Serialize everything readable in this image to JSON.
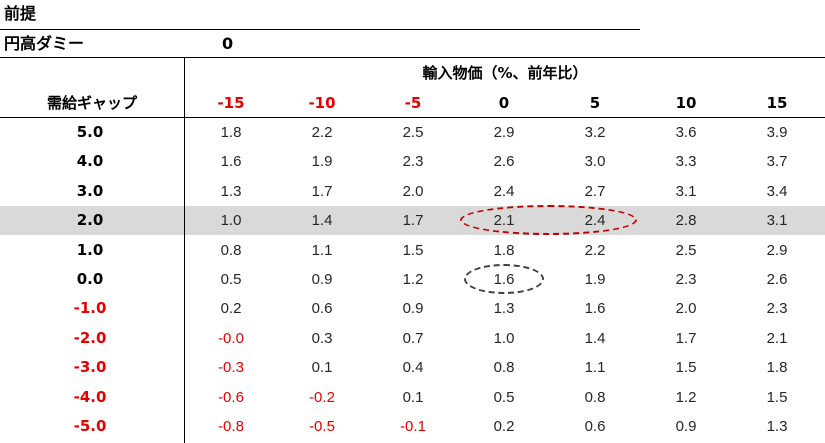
{
  "premise": {
    "title": "前提"
  },
  "yen": {
    "label": "円高ダミー",
    "value": "0"
  },
  "header": {
    "group_title": "輸入物価（%、前年比）",
    "row_header": "需給ギャップ",
    "columns": [
      {
        "label": "-15",
        "negative": true
      },
      {
        "label": "-10",
        "negative": true
      },
      {
        "label": "-5",
        "negative": true
      },
      {
        "label": "0",
        "negative": false
      },
      {
        "label": "5",
        "negative": false
      },
      {
        "label": "10",
        "negative": false
      },
      {
        "label": "15",
        "negative": false
      }
    ]
  },
  "rows": [
    {
      "label": "5.0",
      "negative": false,
      "values": [
        "1.8",
        "2.2",
        "2.5",
        "2.9",
        "3.2",
        "3.6",
        "3.9"
      ]
    },
    {
      "label": "4.0",
      "negative": false,
      "values": [
        "1.6",
        "1.9",
        "2.3",
        "2.6",
        "3.0",
        "3.3",
        "3.7"
      ]
    },
    {
      "label": "3.0",
      "negative": false,
      "values": [
        "1.3",
        "1.7",
        "2.0",
        "2.4",
        "2.7",
        "3.1",
        "3.4"
      ]
    },
    {
      "label": "2.0",
      "negative": false,
      "highlighted": true,
      "values": [
        "1.0",
        "1.4",
        "1.7",
        "2.1",
        "2.4",
        "2.8",
        "3.1"
      ]
    },
    {
      "label": "1.0",
      "negative": false,
      "values": [
        "0.8",
        "1.1",
        "1.5",
        "1.8",
        "2.2",
        "2.5",
        "2.9"
      ]
    },
    {
      "label": "0.0",
      "negative": false,
      "values": [
        "0.5",
        "0.9",
        "1.2",
        "1.6",
        "1.9",
        "2.3",
        "2.6"
      ]
    },
    {
      "label": "-1.0",
      "negative": true,
      "values": [
        "0.2",
        "0.6",
        "0.9",
        "1.3",
        "1.6",
        "2.0",
        "2.3"
      ]
    },
    {
      "label": "-2.0",
      "negative": true,
      "values": [
        "-0.0",
        "0.3",
        "0.7",
        "1.0",
        "1.4",
        "1.7",
        "2.1"
      ]
    },
    {
      "label": "-3.0",
      "negative": true,
      "values": [
        "-0.3",
        "0.1",
        "0.4",
        "0.8",
        "1.1",
        "1.5",
        "1.8"
      ]
    },
    {
      "label": "-4.0",
      "negative": true,
      "values": [
        "-0.6",
        "-0.2",
        "0.1",
        "0.5",
        "0.8",
        "1.2",
        "1.5"
      ]
    },
    {
      "label": "-5.0",
      "negative": true,
      "values": [
        "-0.8",
        "-0.5",
        "-0.1",
        "0.2",
        "0.6",
        "0.9",
        "1.3"
      ]
    }
  ],
  "annotations": [
    {
      "name": "red-dashed-ellipse",
      "color": "#c00000",
      "row": 3,
      "from_col": 3,
      "to_col": 4
    },
    {
      "name": "gray-dashed-ellipse",
      "color": "#404040",
      "row": 5,
      "from_col": 3,
      "to_col": 3
    }
  ],
  "colors": {
    "negative": "#e60000",
    "highlight_row": "#d9d9d9",
    "text": "#262626"
  }
}
